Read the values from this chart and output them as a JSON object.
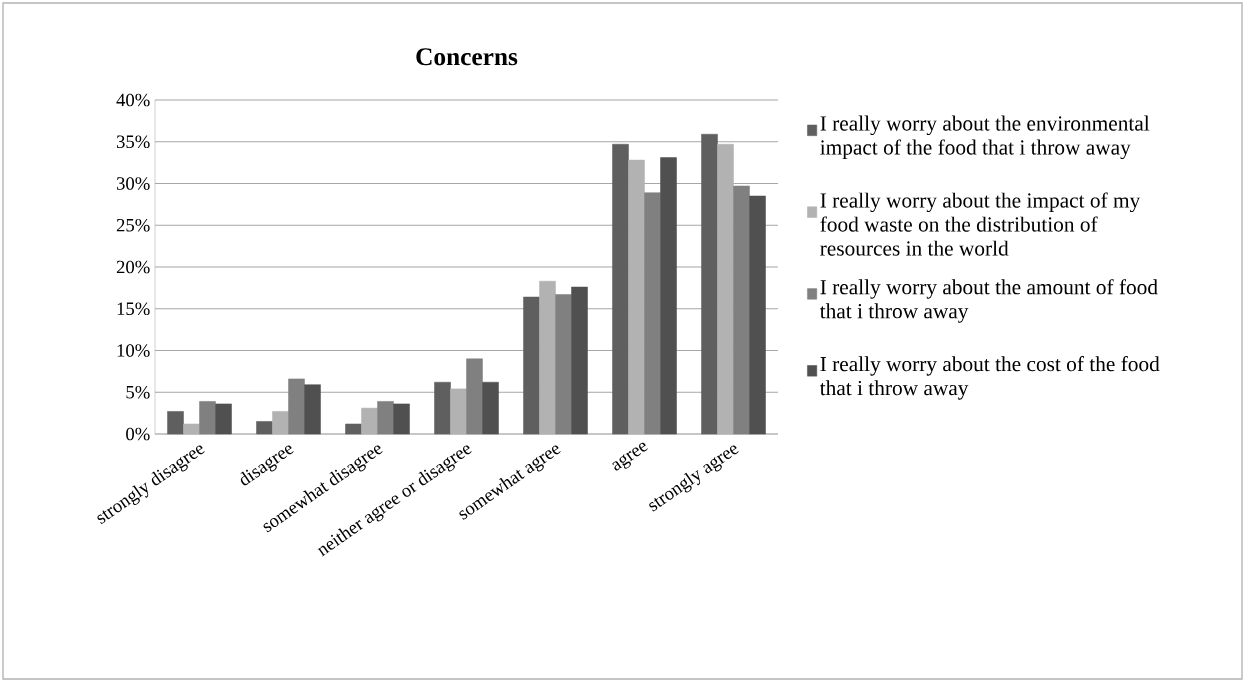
{
  "chart_data": {
    "type": "bar",
    "title": "Concerns",
    "categories": [
      "strongly disagree",
      "disagree",
      "somewhat disagree",
      "neither agree or disagree",
      "somewhat agree",
      "agree",
      "strongly agree"
    ],
    "series": [
      {
        "name": "I really worry about the environmental impact of the food that i throw away",
        "color": "#5f5f5f",
        "values": [
          2.7,
          1.5,
          1.2,
          6.2,
          16.4,
          34.7,
          35.9
        ]
      },
      {
        "name": "I really worry about the impact of my food waste on the distribution of resources in the world",
        "color": "#b2b2b2",
        "values": [
          1.2,
          2.7,
          3.1,
          5.4,
          18.3,
          32.8,
          34.7
        ]
      },
      {
        "name": "I really worry about the amount of food that i throw away",
        "color": "#808080",
        "values": [
          3.9,
          6.6,
          3.9,
          9.0,
          16.7,
          28.9,
          29.7
        ]
      },
      {
        "name": "I really worry about the cost of the food that i throw away",
        "color": "#505050",
        "values": [
          3.6,
          5.9,
          3.6,
          6.2,
          17.6,
          33.1,
          28.5
        ]
      }
    ],
    "ylim": [
      0,
      40
    ],
    "yticks": [
      {
        "value": 0,
        "label": "0%"
      },
      {
        "value": 5,
        "label": "5%"
      },
      {
        "value": 10,
        "label": "10%"
      },
      {
        "value": 15,
        "label": "15%"
      },
      {
        "value": 20,
        "label": "20%"
      },
      {
        "value": 25,
        "label": "25%"
      },
      {
        "value": 30,
        "label": "30%"
      },
      {
        "value": 35,
        "label": "35%"
      },
      {
        "value": 40,
        "label": "40%"
      }
    ],
    "grid": "y",
    "legend": "right"
  }
}
